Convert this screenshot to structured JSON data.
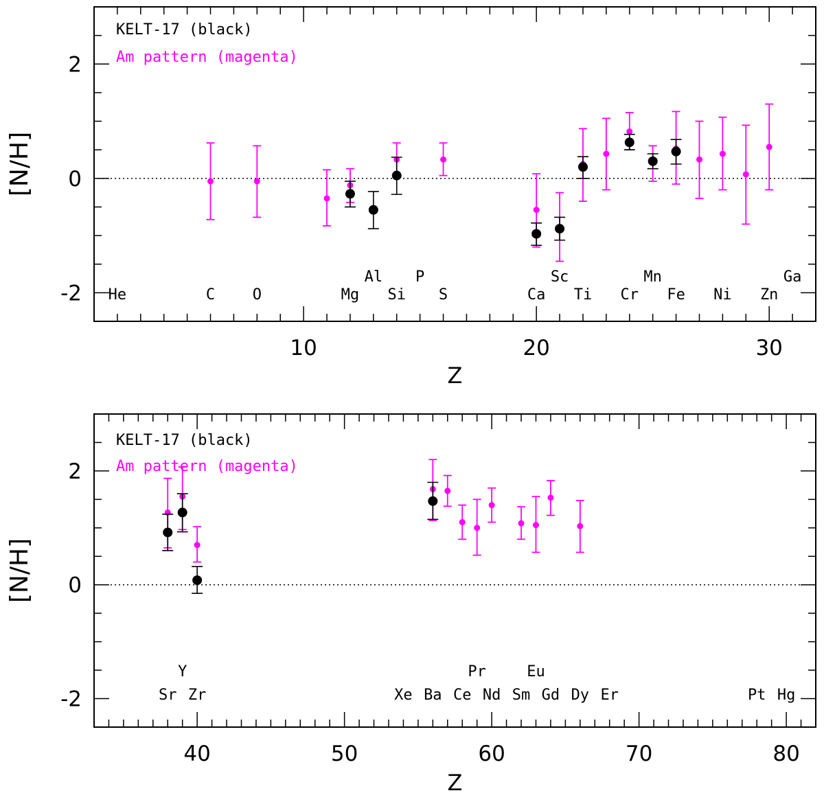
{
  "colors": {
    "kelt": "#000000",
    "am": "#ff00ff"
  },
  "chart_data": [
    {
      "type": "scatter",
      "legend": [
        "KELT-17 (black)",
        "Am pattern (magenta)"
      ],
      "xlabel": "Z",
      "ylabel": "[N/H]",
      "xlim": [
        1,
        32
      ],
      "ylim": [
        -2.5,
        3.0
      ],
      "xticks": [
        10,
        20,
        30
      ],
      "yticks": [
        -2,
        0,
        2
      ],
      "element_labels": [
        {
          "symbol": "He",
          "z": 2,
          "row": "low"
        },
        {
          "symbol": "C",
          "z": 6,
          "row": "low"
        },
        {
          "symbol": "O",
          "z": 8,
          "row": "low"
        },
        {
          "symbol": "Mg",
          "z": 12,
          "row": "low"
        },
        {
          "symbol": "Al",
          "z": 13,
          "row": "high"
        },
        {
          "symbol": "Si",
          "z": 14,
          "row": "low"
        },
        {
          "symbol": "P",
          "z": 15,
          "row": "high"
        },
        {
          "symbol": "S",
          "z": 16,
          "row": "low"
        },
        {
          "symbol": "Ca",
          "z": 20,
          "row": "low"
        },
        {
          "symbol": "Sc",
          "z": 21,
          "row": "high"
        },
        {
          "symbol": "Ti",
          "z": 22,
          "row": "low"
        },
        {
          "symbol": "Cr",
          "z": 24,
          "row": "low"
        },
        {
          "symbol": "Mn",
          "z": 25,
          "row": "high"
        },
        {
          "symbol": "Fe",
          "z": 26,
          "row": "low"
        },
        {
          "symbol": "Ni",
          "z": 28,
          "row": "low"
        },
        {
          "symbol": "Zn",
          "z": 30,
          "row": "low"
        },
        {
          "symbol": "Ga",
          "z": 31,
          "row": "high"
        }
      ],
      "series": [
        {
          "name": "Am pattern",
          "points": [
            {
              "z": 6,
              "y": -0.05,
              "lo": -0.72,
              "hi": 0.62
            },
            {
              "z": 8,
              "y": -0.05,
              "lo": -0.68,
              "hi": 0.57
            },
            {
              "z": 11,
              "y": -0.35,
              "lo": -0.83,
              "hi": 0.15
            },
            {
              "z": 12,
              "y": -0.12,
              "lo": -0.42,
              "hi": 0.17
            },
            {
              "z": 14,
              "y": 0.33,
              "lo": 0.05,
              "hi": 0.62
            },
            {
              "z": 16,
              "y": 0.33,
              "lo": 0.05,
              "hi": 0.62
            },
            {
              "z": 20,
              "y": -0.55,
              "lo": -1.2,
              "hi": 0.08
            },
            {
              "z": 21,
              "y": -0.85,
              "lo": -1.45,
              "hi": -0.25
            },
            {
              "z": 22,
              "y": 0.25,
              "lo": -0.4,
              "hi": 0.87
            },
            {
              "z": 23,
              "y": 0.43,
              "lo": -0.2,
              "hi": 1.05
            },
            {
              "z": 24,
              "y": 0.82,
              "lo": 0.5,
              "hi": 1.15
            },
            {
              "z": 25,
              "y": 0.27,
              "lo": -0.05,
              "hi": 0.57
            },
            {
              "z": 26,
              "y": 0.52,
              "lo": -0.1,
              "hi": 1.17
            },
            {
              "z": 27,
              "y": 0.33,
              "lo": -0.35,
              "hi": 1.0
            },
            {
              "z": 28,
              "y": 0.43,
              "lo": -0.2,
              "hi": 1.07
            },
            {
              "z": 29,
              "y": 0.07,
              "lo": -0.8,
              "hi": 0.93
            },
            {
              "z": 30,
              "y": 0.55,
              "lo": -0.2,
              "hi": 1.3
            }
          ]
        },
        {
          "name": "KELT-17",
          "points": [
            {
              "z": 12,
              "y": -0.27,
              "lo": -0.5,
              "hi": -0.05
            },
            {
              "z": 13,
              "y": -0.55,
              "lo": -0.88,
              "hi": -0.23
            },
            {
              "z": 14,
              "y": 0.05,
              "lo": -0.28,
              "hi": 0.37
            },
            {
              "z": 20,
              "y": -0.97,
              "lo": -1.17,
              "hi": -0.78
            },
            {
              "z": 21,
              "y": -0.88,
              "lo": -1.08,
              "hi": -0.68
            },
            {
              "z": 22,
              "y": 0.2,
              "lo": 0.0,
              "hi": 0.38
            },
            {
              "z": 24,
              "y": 0.63,
              "lo": 0.5,
              "hi": 0.77
            },
            {
              "z": 25,
              "y": 0.3,
              "lo": 0.17,
              "hi": 0.43
            },
            {
              "z": 26,
              "y": 0.47,
              "lo": 0.25,
              "hi": 0.68
            }
          ]
        }
      ]
    },
    {
      "type": "scatter",
      "legend": [
        "KELT-17 (black)",
        "Am pattern (magenta)"
      ],
      "xlabel": "Z",
      "ylabel": "[N/H]",
      "xlim": [
        33,
        82
      ],
      "ylim": [
        -2.5,
        3.0
      ],
      "xticks": [
        40,
        50,
        60,
        70,
        80
      ],
      "yticks": [
        -2,
        0,
        2
      ],
      "element_labels": [
        {
          "symbol": "Sr",
          "z": 38,
          "row": "low"
        },
        {
          "symbol": "Y",
          "z": 39,
          "row": "high"
        },
        {
          "symbol": "Zr",
          "z": 40,
          "row": "low"
        },
        {
          "symbol": "Xe",
          "z": 54,
          "row": "low"
        },
        {
          "symbol": "Ba",
          "z": 56,
          "row": "low"
        },
        {
          "symbol": "Ce",
          "z": 58,
          "row": "low"
        },
        {
          "symbol": "Pr",
          "z": 59,
          "row": "high"
        },
        {
          "symbol": "Nd",
          "z": 60,
          "row": "low"
        },
        {
          "symbol": "Sm",
          "z": 62,
          "row": "low"
        },
        {
          "symbol": "Eu",
          "z": 63,
          "row": "high"
        },
        {
          "symbol": "Gd",
          "z": 64,
          "row": "low"
        },
        {
          "symbol": "Dy",
          "z": 66,
          "row": "low"
        },
        {
          "symbol": "Er",
          "z": 68,
          "row": "low"
        },
        {
          "symbol": "Pt",
          "z": 78,
          "row": "low"
        },
        {
          "symbol": "Hg",
          "z": 80,
          "row": "low"
        }
      ],
      "series": [
        {
          "name": "Am pattern",
          "points": [
            {
              "z": 38,
              "y": 1.27,
              "lo": 0.65,
              "hi": 1.87
            },
            {
              "z": 39,
              "y": 1.55,
              "lo": 0.97,
              "hi": 2.07
            },
            {
              "z": 40,
              "y": 0.7,
              "lo": 0.4,
              "hi": 1.02
            },
            {
              "z": 56,
              "y": 1.68,
              "lo": 1.13,
              "hi": 2.2
            },
            {
              "z": 57,
              "y": 1.65,
              "lo": 1.38,
              "hi": 1.92
            },
            {
              "z": 58,
              "y": 1.1,
              "lo": 0.8,
              "hi": 1.4
            },
            {
              "z": 59,
              "y": 1.0,
              "lo": 0.52,
              "hi": 1.5
            },
            {
              "z": 60,
              "y": 1.4,
              "lo": 1.1,
              "hi": 1.7
            },
            {
              "z": 62,
              "y": 1.08,
              "lo": 0.8,
              "hi": 1.37
            },
            {
              "z": 63,
              "y": 1.05,
              "lo": 0.57,
              "hi": 1.55
            },
            {
              "z": 64,
              "y": 1.53,
              "lo": 1.22,
              "hi": 1.83
            },
            {
              "z": 66,
              "y": 1.03,
              "lo": 0.57,
              "hi": 1.48
            }
          ]
        },
        {
          "name": "KELT-17",
          "points": [
            {
              "z": 38,
              "y": 0.92,
              "lo": 0.6,
              "hi": 1.24
            },
            {
              "z": 39,
              "y": 1.27,
              "lo": 0.93,
              "hi": 1.6
            },
            {
              "z": 40,
              "y": 0.08,
              "lo": -0.15,
              "hi": 0.32
            },
            {
              "z": 56,
              "y": 1.47,
              "lo": 1.15,
              "hi": 1.8
            }
          ]
        }
      ]
    }
  ]
}
